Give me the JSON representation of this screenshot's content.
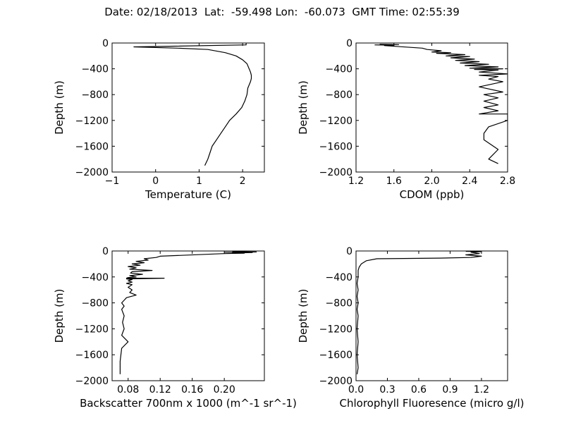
{
  "figure_title": "Date: 02/18/2013  Lat:  -59.498 Lon:  -60.073  GMT Time: 02:55:39",
  "chart_data": [
    {
      "type": "line",
      "xlabel": "Temperature (C)",
      "ylabel": "Depth (m)",
      "xlim": [
        -1,
        2.5
      ],
      "ylim": [
        -2000,
        0
      ],
      "xticks": [
        -1,
        0,
        1,
        2
      ],
      "xtick_labels": [
        "−1",
        "0",
        "1",
        "2"
      ],
      "yticks": [
        0,
        -400,
        -800,
        -1200,
        -1600,
        -2000
      ],
      "ytick_labels": [
        "0",
        "−400",
        "−800",
        "−1200",
        "−1600",
        "−2000"
      ],
      "series": [
        {
          "x": [
            2.08,
            2.08,
            -0.5,
            0.5,
            1.2,
            1.6,
            1.85,
            2.0,
            2.1,
            2.15,
            2.18,
            2.2,
            2.2,
            2.18,
            2.12,
            2.1,
            2.05,
            1.98,
            1.85,
            1.7,
            1.6,
            1.5,
            1.4,
            1.3,
            1.25,
            1.2,
            1.13
          ],
          "y": [
            -5,
            -30,
            -60,
            -80,
            -100,
            -150,
            -200,
            -260,
            -320,
            -400,
            -450,
            -500,
            -550,
            -600,
            -700,
            -800,
            -900,
            -1000,
            -1100,
            -1200,
            -1300,
            -1400,
            -1500,
            -1600,
            -1700,
            -1800,
            -1900
          ]
        }
      ]
    },
    {
      "type": "line",
      "xlabel": "CDOM (ppb)",
      "ylabel": "Depth (m)",
      "xlim": [
        1.2,
        2.8
      ],
      "ylim": [
        -2000,
        0
      ],
      "xticks": [
        1.2,
        1.6,
        2.0,
        2.4,
        2.8
      ],
      "xtick_labels": [
        "1.2",
        "1.6",
        "2.0",
        "2.4",
        "2.8"
      ],
      "yticks": [
        0,
        -400,
        -800,
        -1200,
        -1600,
        -2000
      ],
      "ytick_labels": [
        "0",
        "−400",
        "−800",
        "−1200",
        "−1600",
        "−2000"
      ],
      "series": [
        {
          "x": [
            1.45,
            1.65,
            1.4,
            1.6,
            1.5,
            1.9,
            1.95,
            2.1,
            2.0,
            2.2,
            2.05,
            2.35,
            2.15,
            2.4,
            2.2,
            2.45,
            2.25,
            2.5,
            2.3,
            2.6,
            2.35,
            2.7,
            2.4,
            2.75,
            2.45,
            2.7,
            2.5,
            2.8,
            2.5,
            2.7,
            2.6,
            2.75,
            2.5,
            2.75,
            2.55,
            2.7,
            2.55,
            2.7,
            2.55,
            2.7,
            2.5,
            2.8,
            2.8,
            2.6,
            2.55,
            2.55,
            2.7,
            2.6,
            2.7
          ],
          "y": [
            -20,
            -25,
            -30,
            -35,
            -40,
            -80,
            -100,
            -120,
            -140,
            -150,
            -160,
            -180,
            -200,
            -210,
            -230,
            -250,
            -270,
            -290,
            -310,
            -330,
            -350,
            -370,
            -390,
            -400,
            -410,
            -420,
            -450,
            -480,
            -500,
            -520,
            -560,
            -600,
            -680,
            -760,
            -800,
            -850,
            -900,
            -960,
            -1000,
            -1050,
            -1100,
            -1100,
            -1200,
            -1300,
            -1400,
            -1500,
            -1650,
            -1800,
            -1870
          ]
        }
      ]
    },
    {
      "type": "line",
      "xlabel": "Backscatter 700nm x 1000 (m^-1 sr^-1)",
      "ylabel": "Depth (m)",
      "xlim": [
        0.06,
        0.25
      ],
      "ylim": [
        -2000,
        0
      ],
      "xticks": [
        0.08,
        0.12,
        0.16,
        0.2
      ],
      "xtick_labels": [
        "0.08",
        "0.12",
        "0.16",
        "0.20"
      ],
      "yticks": [
        0,
        -400,
        -800,
        -1200,
        -1600,
        -2000
      ],
      "ytick_labels": [
        "0",
        "−400",
        "−800",
        "−1200",
        "−1600",
        "−2000"
      ],
      "series": [
        {
          "x": [
            0.21,
            0.24,
            0.2,
            0.235,
            0.21,
            0.225,
            0.2,
            0.12,
            0.115,
            0.1,
            0.105,
            0.09,
            0.1,
            0.085,
            0.095,
            0.08,
            0.09,
            0.082,
            0.11,
            0.085,
            0.083,
            0.098,
            0.082,
            0.09,
            0.08,
            0.078,
            0.125,
            0.078,
            0.085,
            0.08,
            0.085,
            0.078,
            0.085,
            0.08,
            0.085,
            0.082,
            0.09,
            0.078,
            0.075,
            0.072,
            0.075,
            0.072,
            0.075,
            0.073,
            0.075,
            0.072,
            0.08,
            0.072,
            0.07,
            0.07
          ],
          "y": [
            -10,
            -15,
            -20,
            -25,
            -30,
            -35,
            -40,
            -80,
            -100,
            -120,
            -140,
            -160,
            -180,
            -200,
            -220,
            -240,
            -260,
            -280,
            -300,
            -320,
            -340,
            -360,
            -380,
            -400,
            -410,
            -420,
            -420,
            -430,
            -440,
            -460,
            -480,
            -500,
            -520,
            -560,
            -600,
            -640,
            -680,
            -720,
            -760,
            -800,
            -850,
            -900,
            -1000,
            -1100,
            -1200,
            -1300,
            -1400,
            -1500,
            -1700,
            -1900
          ]
        }
      ]
    },
    {
      "type": "line",
      "xlabel": "Chlorophyll Fluoresence (micro g/l)",
      "ylabel": "Depth (m)",
      "xlim": [
        0,
        1.45
      ],
      "ylim": [
        -2000,
        0
      ],
      "xticks": [
        0,
        0.3,
        0.6,
        0.9,
        1.2
      ],
      "xtick_labels": [
        "0.0",
        "0.3",
        "0.6",
        "0.9",
        "1.2"
      ],
      "yticks": [
        0,
        -400,
        -800,
        -1200,
        -1600,
        -2000
      ],
      "ytick_labels": [
        "0",
        "−400",
        "−800",
        "−1200",
        "−1600",
        "−2000"
      ],
      "series": [
        {
          "x": [
            1.05,
            1.2,
            1.1,
            1.18,
            1.05,
            1.2,
            1.1,
            0.8,
            0.2,
            0.1,
            0.05,
            0.03,
            0.02,
            0.02,
            0.01,
            0.02,
            0.01,
            0.02,
            0.01,
            0.02,
            0.01,
            0.02,
            0.01,
            0.02,
            0.01
          ],
          "y": [
            -5,
            -10,
            -20,
            -40,
            -60,
            -80,
            -100,
            -110,
            -120,
            -150,
            -200,
            -250,
            -300,
            -400,
            -500,
            -600,
            -700,
            -800,
            -900,
            -1000,
            -1200,
            -1400,
            -1600,
            -1800,
            -1900
          ]
        }
      ]
    }
  ]
}
